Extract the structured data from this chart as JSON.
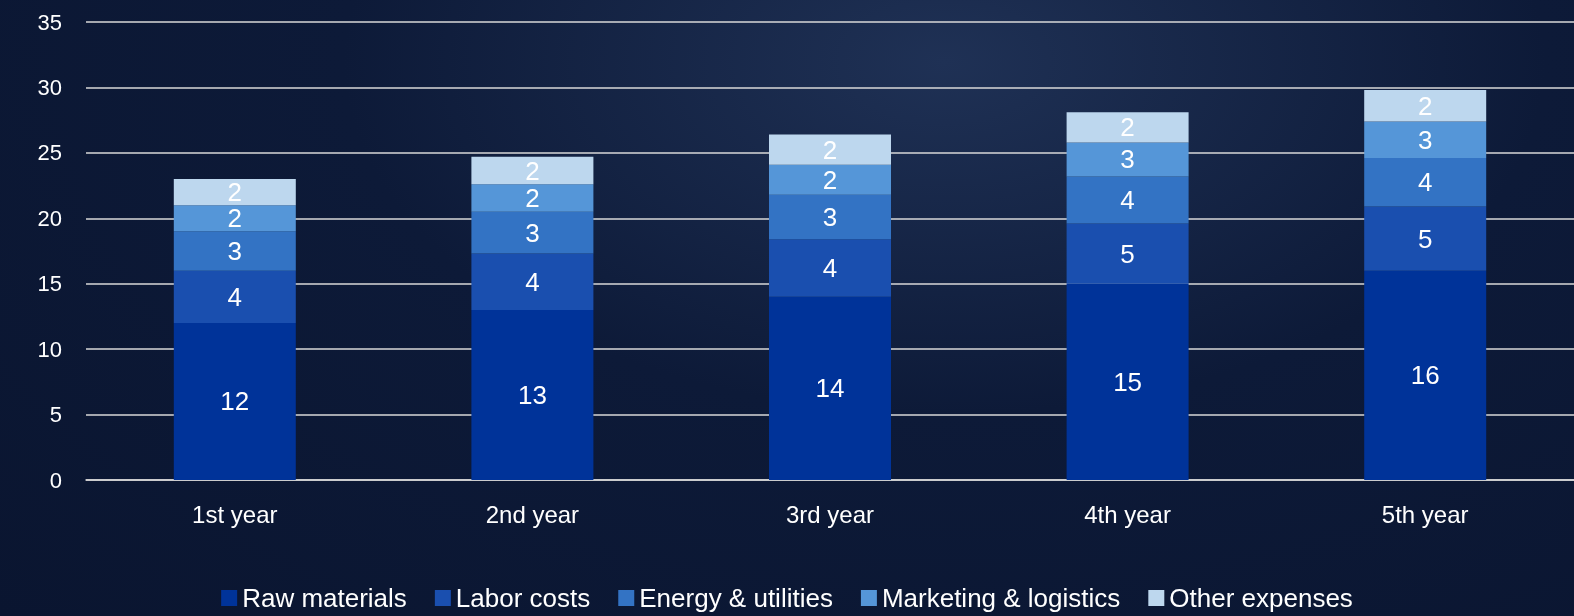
{
  "chart_data": {
    "type": "bar",
    "stacked": true,
    "categories": [
      "1st year",
      "2nd year",
      "3rd year",
      "4th year",
      "5th year"
    ],
    "series": [
      {
        "name": "Raw materials",
        "color": "#003399",
        "values": [
          12,
          13,
          14,
          15,
          16
        ],
        "value_labels": [
          "12",
          "13",
          "14",
          "15",
          "16"
        ]
      },
      {
        "name": "Labor costs",
        "color": "#1a4faf",
        "values": [
          4,
          4.3,
          4.4,
          4.6,
          4.9
        ],
        "value_labels": [
          "4",
          "4",
          "4",
          "5",
          "5"
        ]
      },
      {
        "name": "Energy & utilities",
        "color": "#3373c4",
        "values": [
          3,
          3.2,
          3.4,
          3.6,
          3.7
        ],
        "value_labels": [
          "3",
          "3",
          "3",
          "4",
          "4"
        ]
      },
      {
        "name": "Marketing & logistics",
        "color": "#5596d8",
        "values": [
          2,
          2.1,
          2.3,
          2.6,
          2.8
        ],
        "value_labels": [
          "2",
          "2",
          "2",
          "3",
          "3"
        ]
      },
      {
        "name": "Other expenses",
        "color": "#bdd7ee",
        "values": [
          2,
          2.1,
          2.3,
          2.3,
          2.4
        ],
        "value_labels": [
          "2",
          "2",
          "2",
          "2",
          "2"
        ]
      }
    ],
    "ylim": [
      0,
      35
    ],
    "yticks": [
      0,
      5,
      10,
      15,
      20,
      25,
      30,
      35
    ],
    "grid": "y",
    "legend": "bottom"
  }
}
